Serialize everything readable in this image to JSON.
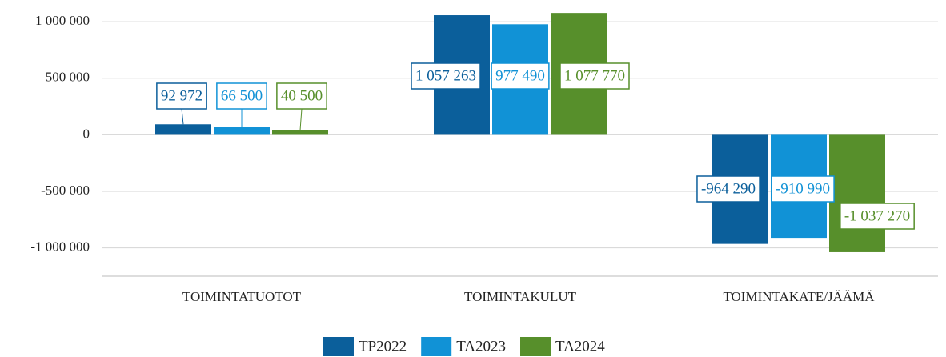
{
  "chart_data": {
    "type": "bar",
    "categories": [
      "TOIMINTATUOTOT",
      "TOIMINTAKULUT",
      "TOIMINTAKATE/JÄÄMÄ"
    ],
    "series": [
      {
        "name": "TP2022",
        "color": "#0b5f9b",
        "values": [
          92972,
          1057263,
          -964290
        ],
        "value_labels": [
          "92 972",
          "1 057 263",
          "-964 290"
        ]
      },
      {
        "name": "TA2023",
        "color": "#1192d6",
        "values": [
          66500,
          977490,
          -910990
        ],
        "value_labels": [
          "66 500",
          "977 490",
          "-910 990"
        ]
      },
      {
        "name": "TA2024",
        "color": "#578f2b",
        "values": [
          40500,
          1077770,
          -1037270
        ],
        "value_labels": [
          "40 500",
          "1 077 770",
          "-1 037 270"
        ]
      }
    ],
    "ylim": [
      -1250000,
      1100000
    ],
    "yticks": [
      {
        "value": -1000000,
        "label": "-1 000 000"
      },
      {
        "value": -500000,
        "label": "-500 000"
      },
      0,
      {
        "value": 500000,
        "label": "500 000"
      },
      {
        "value": 1000000,
        "label": "1 000 000"
      }
    ],
    "grid": true,
    "legend": "bottom"
  }
}
